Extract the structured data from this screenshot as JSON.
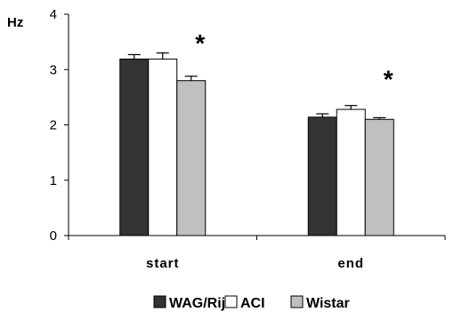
{
  "chart_data": {
    "type": "bar",
    "y_unit_label": "Hz",
    "ylim": [
      0,
      4
    ],
    "y_ticks": [
      0,
      1,
      2,
      3,
      4
    ],
    "grid": false,
    "legend_position": "bottom",
    "categories": [
      "start",
      "end"
    ],
    "series": [
      {
        "name": "WAG/Rij",
        "color": "#333333",
        "values": [
          3.19,
          2.14
        ],
        "errors": [
          0.08,
          0.06
        ]
      },
      {
        "name": "ACI",
        "color": "#ffffff",
        "values": [
          3.19,
          2.28
        ],
        "errors": [
          0.11,
          0.07
        ]
      },
      {
        "name": "Wistar",
        "color": "#c0c0c0",
        "values": [
          2.8,
          2.1
        ],
        "errors": [
          0.08,
          0.03
        ]
      }
    ],
    "annotations": [
      {
        "text": "*",
        "category_index": 0,
        "y": 3.55
      },
      {
        "text": "*",
        "category_index": 1,
        "y": 2.9
      }
    ]
  }
}
